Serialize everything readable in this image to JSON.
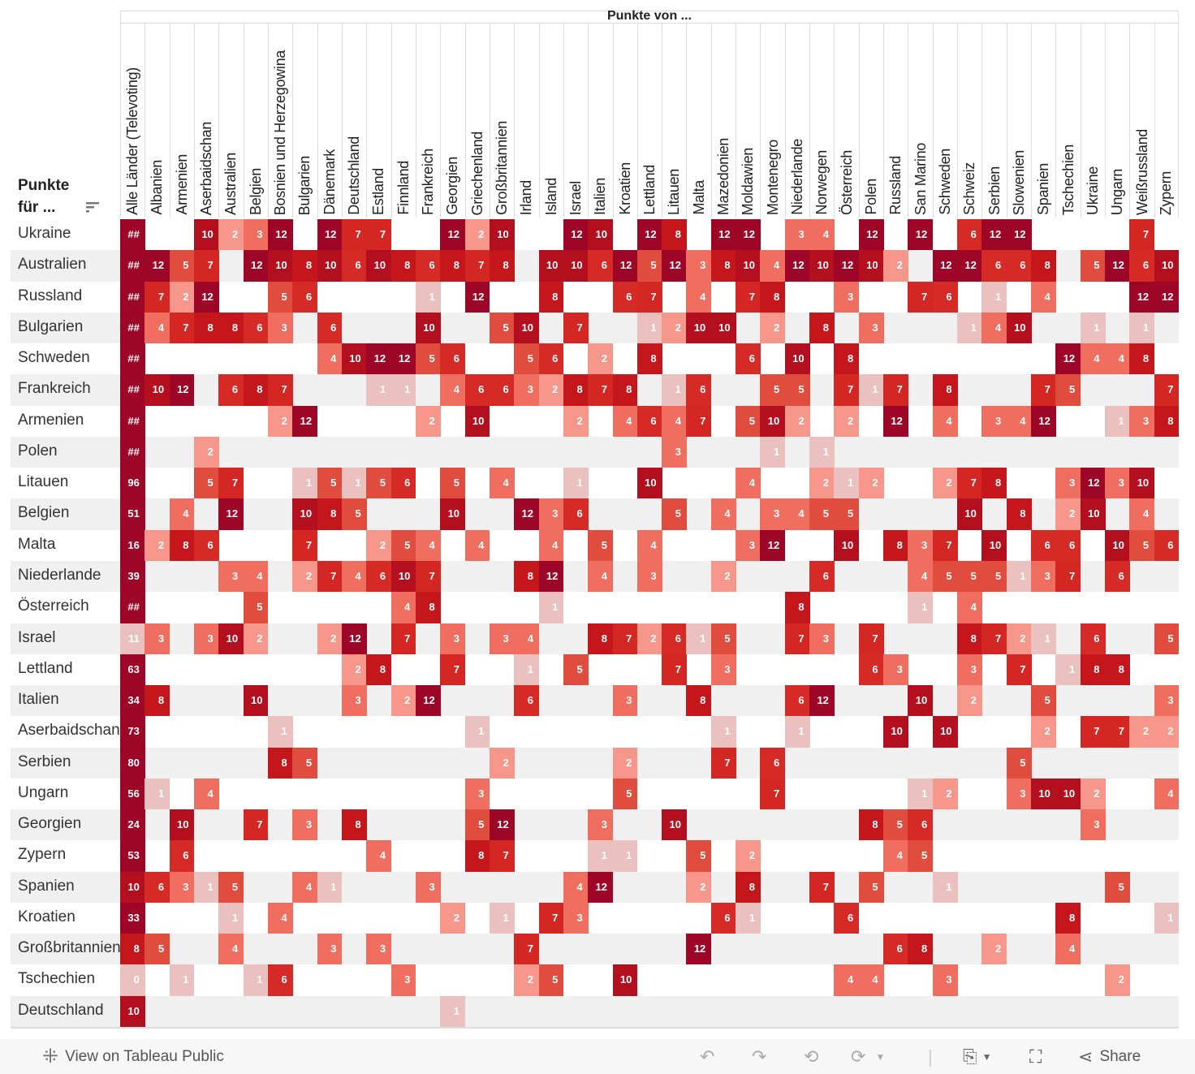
{
  "chart_data": {
    "type": "heatmap",
    "title": "Punkte von ...",
    "row_header": "Punkte für ...",
    "columns": [
      "Alle Länder (Televoting)",
      "Albanien",
      "Armenien",
      "Aserbaidschan",
      "Australien",
      "Belgien",
      "Bosnien und Herzegowina",
      "Bulgarien",
      "Dänemark",
      "Deutschland",
      "Estland",
      "Finnland",
      "Frankreich",
      "Georgien",
      "Griechenland",
      "Großbritannien",
      "Irland",
      "Island",
      "Israel",
      "Italien",
      "Kroatien",
      "Lettland",
      "Litauen",
      "Malta",
      "Mazedonien",
      "Moldawien",
      "Montenegro",
      "Niederlande",
      "Norwegen",
      "Österreich",
      "Polen",
      "Russland",
      "San Marino",
      "Schweden",
      "Schweiz",
      "Serbien",
      "Slowenien",
      "Spanien",
      "Tschechien",
      "Ukraine",
      "Ungarn",
      "Weißrussland",
      "Zypern"
    ],
    "rows": [
      {
        "label": "Ukraine",
        "total": "##",
        "cells": {
          "3": 10,
          "4": 2,
          "5": 3,
          "6": 12,
          "8": 12,
          "9": 7,
          "10": 7,
          "13": 12,
          "14": 2,
          "15": 10,
          "18": 12,
          "19": 10,
          "21": 12,
          "22": 8,
          "24": 12,
          "25": 12,
          "27": 3,
          "28": 4,
          "30": 12,
          "32": 12,
          "34": 6,
          "35": 12,
          "36": 12,
          "41": 7
        }
      },
      {
        "label": "Australien",
        "total": "##",
        "cells": {
          "1": 12,
          "2": 5,
          "3": 7,
          "5": 12,
          "6": 10,
          "7": 8,
          "8": 10,
          "9": 6,
          "10": 10,
          "11": 8,
          "12": 6,
          "13": 8,
          "14": 7,
          "15": 8,
          "17": 10,
          "18": 10,
          "19": 6,
          "20": 12,
          "21": 5,
          "22": 12,
          "23": 3,
          "24": 8,
          "25": 10,
          "26": 4,
          "27": 12,
          "28": 10,
          "29": 12,
          "30": 10,
          "31": 2,
          "33": 12,
          "34": 12,
          "35": 6,
          "36": 6,
          "37": 8,
          "39": 5,
          "40": 12,
          "41": 6,
          "42": 10
        }
      },
      {
        "label": "Russland",
        "total": "##",
        "cells": {
          "1": 7,
          "2": 2,
          "3": 12,
          "6": 5,
          "7": 6,
          "12": 1,
          "14": 12,
          "17": 8,
          "20": 6,
          "21": 7,
          "23": 4,
          "25": 7,
          "26": 8,
          "29": 3,
          "32": 7,
          "33": 6,
          "35": 1,
          "37": 4,
          "41": 12,
          "42": 12
        }
      },
      {
        "label": "Bulgarien",
        "total": "##",
        "cells": {
          "1": 4,
          "2": 7,
          "3": 8,
          "4": 8,
          "5": 6,
          "6": 3,
          "8": 6,
          "12": 10,
          "15": 5,
          "16": 10,
          "18": 7,
          "21": 1,
          "22": 2,
          "23": 10,
          "24": 10,
          "26": 2,
          "28": 8,
          "30": 3,
          "34": 1,
          "35": 4,
          "36": 10,
          "39": 1,
          "41": 1
        }
      },
      {
        "label": "Schweden",
        "total": "##",
        "cells": {
          "8": 4,
          "9": 10,
          "10": 12,
          "11": 12,
          "12": 5,
          "13": 6,
          "16": 5,
          "17": 6,
          "19": 2,
          "21": 8,
          "25": 6,
          "27": 10,
          "29": 8,
          "38": 12,
          "39": 4,
          "40": 4,
          "41": 8
        }
      },
      {
        "label": "Frankreich",
        "total": "##",
        "cells": {
          "1": 10,
          "2": 12,
          "4": 6,
          "5": 8,
          "6": 7,
          "10": 1,
          "11": 1,
          "13": 4,
          "14": 6,
          "15": 6,
          "16": 3,
          "17": 2,
          "18": 8,
          "19": 7,
          "20": 8,
          "22": 1,
          "23": 6,
          "26": 5,
          "27": 5,
          "29": 7,
          "30": 1,
          "31": 7,
          "33": 8,
          "37": 7,
          "38": 5,
          "42": 7
        }
      },
      {
        "label": "Armenien",
        "total": "##",
        "cells": {
          "6": 2,
          "7": 12,
          "12": 2,
          "14": 10,
          "18": 2,
          "20": 4,
          "21": 6,
          "22": 4,
          "23": 7,
          "25": 5,
          "26": 10,
          "27": 2,
          "29": 2,
          "31": 12,
          "33": 4,
          "35": 3,
          "36": 4,
          "37": 12,
          "40": 1,
          "41": 3,
          "42": 8
        }
      },
      {
        "label": "Polen",
        "total": "##",
        "cells": {
          "3": 2,
          "22": 3,
          "26": 1,
          "28": 1
        }
      },
      {
        "label": "Litauen",
        "total": "96",
        "cells": {
          "3": 5,
          "4": 7,
          "7": 1,
          "8": 5,
          "9": 1,
          "10": 5,
          "11": 6,
          "13": 5,
          "15": 4,
          "18": 1,
          "21": 10,
          "25": 4,
          "28": 2,
          "29": 1,
          "30": 2,
          "33": 2,
          "34": 7,
          "35": 8,
          "38": 3,
          "39": 12,
          "40": 3,
          "41": 10
        }
      },
      {
        "label": "Belgien",
        "total": "51",
        "cells": {
          "2": 4,
          "4": 12,
          "7": 10,
          "8": 8,
          "9": 5,
          "13": 10,
          "16": 12,
          "17": 3,
          "18": 6,
          "22": 5,
          "24": 4,
          "26": 3,
          "27": 4,
          "28": 5,
          "29": 5,
          "34": 10,
          "36": 8,
          "38": 2,
          "39": 10,
          "41": 4
        }
      },
      {
        "label": "Malta",
        "total": "16",
        "cells": {
          "1": 2,
          "2": 8,
          "3": 6,
          "7": 7,
          "10": 2,
          "11": 5,
          "12": 4,
          "14": 4,
          "17": 4,
          "19": 5,
          "21": 4,
          "25": 3,
          "26": 12,
          "29": 10,
          "31": 8,
          "32": 3,
          "33": 7,
          "35": 10,
          "37": 6,
          "38": 6,
          "40": 10,
          "41": 5,
          "42": 6
        }
      },
      {
        "label": "Niederlande",
        "total": "39",
        "cells": {
          "4": 3,
          "5": 4,
          "7": 2,
          "8": 7,
          "9": 4,
          "10": 6,
          "11": 10,
          "12": 7,
          "16": 8,
          "17": 12,
          "19": 4,
          "21": 3,
          "24": 2,
          "28": 6,
          "32": 4,
          "33": 5,
          "34": 5,
          "35": 5,
          "36": 1,
          "37": 3,
          "38": 7,
          "40": 6
        }
      },
      {
        "label": "Österreich",
        "total": "##",
        "cells": {
          "5": 5,
          "11": 4,
          "12": 8,
          "17": 1,
          "27": 8,
          "32": 1,
          "34": 4
        }
      },
      {
        "label": "Israel",
        "total": "11",
        "cells": {
          "1": 3,
          "3": 3,
          "4": 10,
          "5": 2,
          "8": 2,
          "9": 12,
          "11": 7,
          "13": 3,
          "15": 3,
          "16": 4,
          "19": 8,
          "20": 7,
          "21": 2,
          "22": 6,
          "23": 1,
          "24": 5,
          "27": 7,
          "28": 3,
          "30": 7,
          "34": 8,
          "35": 7,
          "36": 2,
          "37": 1,
          "39": 6,
          "42": 5
        }
      },
      {
        "label": "Lettland",
        "total": "63",
        "cells": {
          "9": 2,
          "10": 8,
          "13": 7,
          "16": 1,
          "18": 5,
          "22": 7,
          "24": 3,
          "30": 6,
          "31": 3,
          "34": 3,
          "36": 7,
          "38": 1,
          "39": 8,
          "40": 8
        }
      },
      {
        "label": "Italien",
        "total": "34",
        "cells": {
          "1": 8,
          "5": 10,
          "9": 3,
          "11": 2,
          "12": 12,
          "16": 6,
          "20": 3,
          "23": 8,
          "27": 6,
          "28": 12,
          "32": 10,
          "34": 2,
          "37": 5,
          "42": 3
        }
      },
      {
        "label": "Aserbaidschan",
        "total": "73",
        "cells": {
          "6": 1,
          "14": 1,
          "24": 1,
          "27": 1,
          "31": 10,
          "33": 10,
          "37": 2,
          "39": 7,
          "40": 7,
          "41": 2,
          "42": 2
        }
      },
      {
        "label": "Serbien",
        "total": "80",
        "cells": {
          "6": 8,
          "7": 5,
          "15": 2,
          "20": 2,
          "24": 7,
          "26": 6,
          "36": 5
        }
      },
      {
        "label": "Ungarn",
        "total": "56",
        "cells": {
          "1": 1,
          "3": 4,
          "14": 3,
          "20": 5,
          "26": 7,
          "32": 1,
          "33": 2,
          "36": 3,
          "37": 10,
          "38": 10,
          "39": 2,
          "42": 4
        }
      },
      {
        "label": "Georgien",
        "total": "24",
        "cells": {
          "2": 10,
          "5": 7,
          "7": 3,
          "9": 8,
          "14": 5,
          "15": 12,
          "19": 3,
          "22": 10,
          "30": 8,
          "31": 5,
          "32": 6,
          "39": 3
        }
      },
      {
        "label": "Zypern",
        "total": "53",
        "cells": {
          "2": 6,
          "10": 4,
          "14": 8,
          "15": 7,
          "19": 1,
          "20": 1,
          "23": 5,
          "25": 2,
          "31": 4,
          "32": 5
        }
      },
      {
        "label": "Spanien",
        "total": "10",
        "cells": {
          "1": 6,
          "2": 3,
          "3": 1,
          "4": 5,
          "7": 4,
          "8": 1,
          "12": 3,
          "18": 4,
          "19": 12,
          "23": 2,
          "25": 8,
          "28": 7,
          "30": 5,
          "33": 1,
          "40": 5
        }
      },
      {
        "label": "Kroatien",
        "total": "33",
        "cells": {
          "4": 1,
          "6": 4,
          "13": 2,
          "15": 1,
          "17": 7,
          "18": 3,
          "24": 6,
          "25": 1,
          "29": 6,
          "38": 8,
          "42": 1
        }
      },
      {
        "label": "Großbritannien",
        "total": "8",
        "cells": {
          "1": 5,
          "4": 4,
          "8": 3,
          "10": 3,
          "16": 7,
          "23": 12,
          "31": 6,
          "32": 8,
          "35": 2,
          "38": 4
        }
      },
      {
        "label": "Tschechien",
        "total": "0",
        "cells": {
          "2": 1,
          "5": 1,
          "6": 6,
          "11": 3,
          "16": 2,
          "17": 5,
          "20": 10,
          "29": 4,
          "30": 4,
          "33": 3,
          "40": 2
        }
      },
      {
        "label": "Deutschland",
        "total": "10",
        "cells": {
          "13": 1
        }
      }
    ],
    "color_scale": {
      "12": "#9e0627",
      "10": "#b30f1e",
      "8": "#c5161b",
      "7": "#d42623",
      "6": "#d62a26",
      "5": "#e04c3d",
      "4": "#f06e5f",
      "3": "#f06e5f",
      "2": "#f7978b",
      "1": "#ebc1bf",
      "0": "#ebc1bf"
    }
  },
  "footer": {
    "view_label": "View on Tableau Public",
    "share_label": "Share"
  },
  "colors": {
    "row_alt": "#f0f0f0",
    "footer_bg": "#f7f7f7"
  }
}
